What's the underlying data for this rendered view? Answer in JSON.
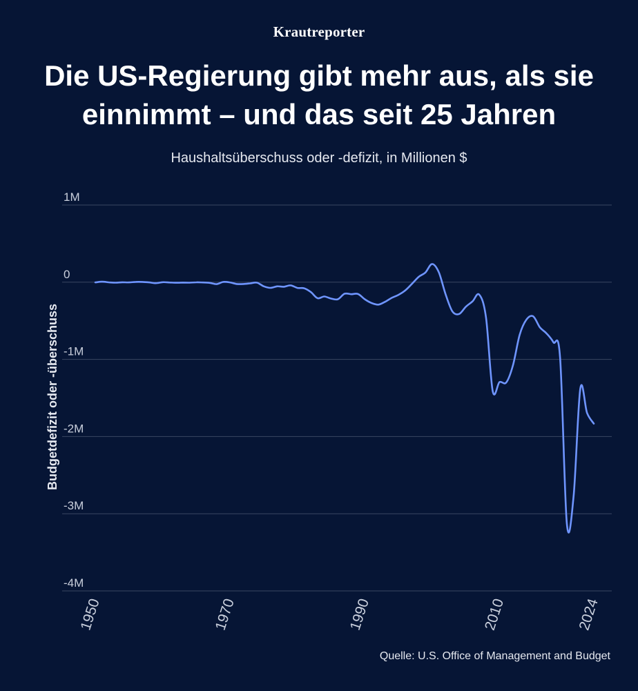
{
  "brand": "Krautreporter",
  "header": {
    "title": "Die US-Regierung gibt mehr aus, als sie einnimmt – und das seit 25 Jahren",
    "subtitle": "Haushaltsüberschuss oder -defizit, in Millionen $"
  },
  "source": "Quelle: U.S. Office of Management and Budget",
  "colors": {
    "background": "#061535",
    "line": "#6f95ff",
    "grid": "#3a4763"
  },
  "chart_data": {
    "type": "line",
    "ylabel": "Budgetdefizit oder -überschuss",
    "y_ticks": [
      {
        "value": 1000000,
        "label": "1M"
      },
      {
        "value": 0,
        "label": "0"
      },
      {
        "value": -1000000,
        "label": "-1M"
      },
      {
        "value": -2000000,
        "label": "-2M"
      },
      {
        "value": -3000000,
        "label": "-3M"
      },
      {
        "value": -4000000,
        "label": "-4M"
      }
    ],
    "x_ticks": [
      1950,
      1970,
      1990,
      2010,
      2024
    ],
    "xlim": [
      1950,
      2024
    ],
    "ylim": [
      -4000000,
      1000000
    ],
    "grid": true,
    "series": [
      {
        "x": [
          1950,
          1951,
          1952,
          1953,
          1954,
          1955,
          1956,
          1957,
          1958,
          1959,
          1960,
          1961,
          1962,
          1963,
          1964,
          1965,
          1966,
          1967,
          1968,
          1969,
          1970,
          1971,
          1972,
          1973,
          1974,
          1975,
          1976,
          1977,
          1978,
          1979,
          1980,
          1981,
          1982,
          1983,
          1984,
          1985,
          1986,
          1987,
          1988,
          1989,
          1990,
          1991,
          1992,
          1993,
          1994,
          1995,
          1996,
          1997,
          1998,
          1999,
          2000,
          2001,
          2002,
          2003,
          2004,
          2005,
          2006,
          2007,
          2008,
          2009,
          2010,
          2011,
          2012,
          2013,
          2014,
          2015,
          2016,
          2017,
          2018,
          2019,
          2020,
          2021,
          2022,
          2023,
          2024
        ],
        "y": [
          -3100,
          6100,
          -1500,
          -6500,
          -1200,
          -3000,
          3900,
          3400,
          -2800,
          -12800,
          300,
          -3300,
          -7100,
          -4800,
          -5900,
          -1400,
          -3700,
          -8600,
          -25200,
          3200,
          -2800,
          -23000,
          -23400,
          -14900,
          -6100,
          -53200,
          -73700,
          -53700,
          -59200,
          -40700,
          -73800,
          -79000,
          -128000,
          -207800,
          -185400,
          -212300,
          -221200,
          -149700,
          -155200,
          -152600,
          -221000,
          -269200,
          -290300,
          -255100,
          -203200,
          -164000,
          -107400,
          -21900,
          69300,
          125600,
          236200,
          128200,
          -157800,
          -377600,
          -412700,
          -318300,
          -248200,
          -160700,
          -458600,
          -1412700,
          -1294400,
          -1299600,
          -1076600,
          -679800,
          -484600,
          -442000,
          -584700,
          -665400,
          -779100,
          -983600,
          -3132500,
          -2775300,
          -1375900,
          -1694000,
          -1832800
        ]
      }
    ]
  }
}
